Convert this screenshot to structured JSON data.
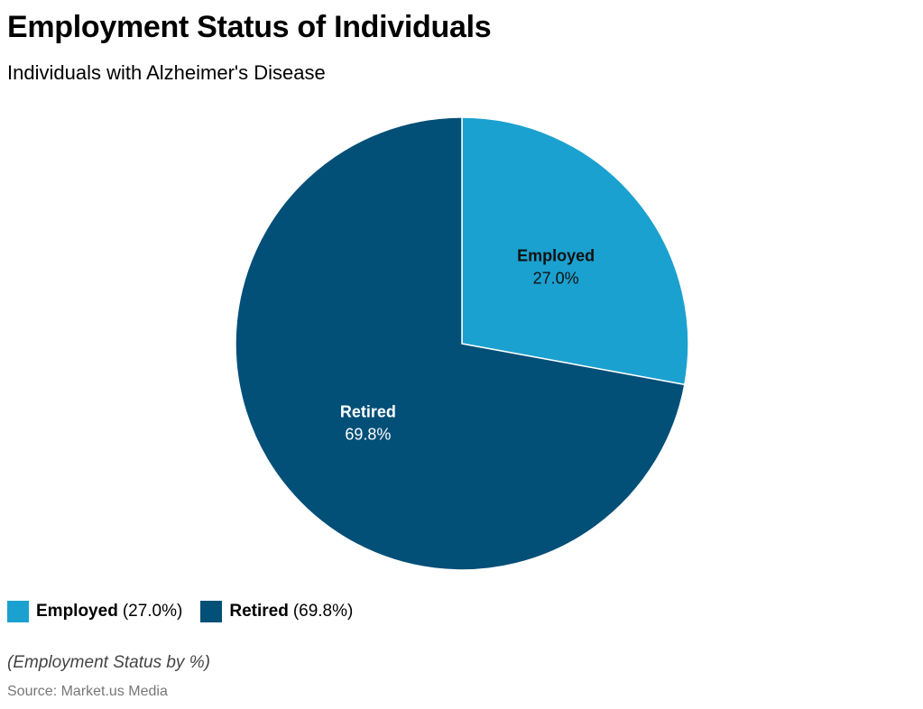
{
  "colors": {
    "employed": "#1ba1cf",
    "retired": "#024f78",
    "background": "#ffffff"
  },
  "chart_data": {
    "type": "pie",
    "title": "Employment Status of Individuals",
    "subtitle": "Individuals with Alzheimer's Disease",
    "slices": [
      {
        "label": "Employed",
        "value": 27.0,
        "display": "27.0%",
        "legend_value": "(27.0%)",
        "color": "#1ba1cf",
        "label_color": "#111111"
      },
      {
        "label": "Retired",
        "value": 69.8,
        "display": "69.8%",
        "legend_value": "(69.8%)",
        "color": "#024f78",
        "label_color": "#ffffff"
      }
    ],
    "legend_placement": "bottom-left",
    "note": "(Employment Status by %)",
    "source": "Source: Market.us Media"
  }
}
